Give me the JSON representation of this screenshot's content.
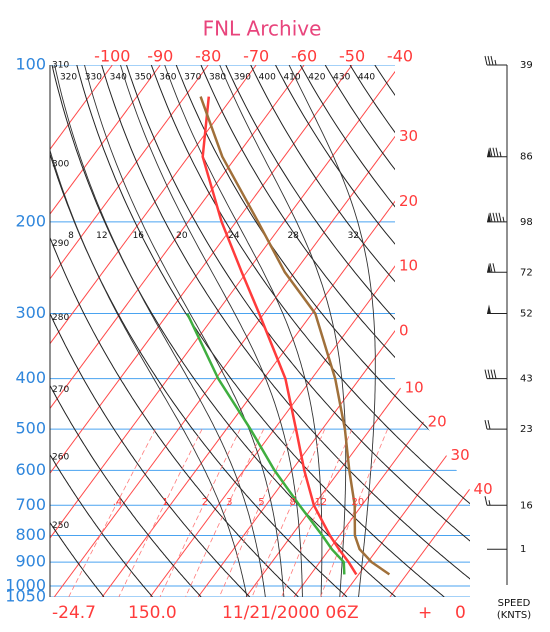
{
  "chart_data": {
    "type": "skew-t",
    "title": "FNL Archive",
    "ylim": [
      100,
      1050
    ],
    "y_scale": "log",
    "yticks": [
      100,
      200,
      300,
      400,
      500,
      600,
      700,
      800,
      900,
      1000,
      1050
    ],
    "xlim": [
      -113,
      -40
    ],
    "xticks": [
      -100,
      -90,
      -80,
      -70,
      -60,
      -50,
      -40
    ],
    "isotherm_ticks": [
      {
        "value": -30,
        "label": "30"
      },
      {
        "value": -20,
        "label": "20"
      },
      {
        "value": -10,
        "label": "10"
      },
      0,
      10,
      20,
      30,
      40
    ],
    "dry_adiabats": [
      250,
      260,
      270,
      280,
      290,
      300,
      310,
      320,
      330,
      340,
      350,
      360,
      370,
      380,
      390,
      400,
      410,
      420,
      430,
      440
    ],
    "moist_adiabats": [
      8,
      12,
      16,
      20,
      24,
      28,
      32
    ],
    "mixing_ratios": [
      {
        "value": 0.4,
        "label": ".4"
      },
      1,
      2,
      3,
      5,
      8,
      12,
      20
    ],
    "levels": [
      115,
      150,
      200,
      250,
      300,
      400,
      500,
      600,
      700,
      800,
      850,
      900,
      950
    ],
    "series": [
      {
        "color": "#ff3b3b",
        "values": [
          -75,
          -67,
          -53,
          -41,
          -31,
          -15.5,
          -5.5,
          2.6,
          10,
          18,
          22,
          26,
          29.5
        ]
      },
      {
        "color": "#3fae3f",
        "values": [
          null,
          null,
          null,
          null,
          -46,
          -29.5,
          -15,
          -3.6,
          7,
          16.4,
          20.5,
          25,
          27
        ]
      },
      {
        "color": "#a0703a",
        "values": [
          -76.7,
          -62.9,
          -45.4,
          -32,
          -19.3,
          -5.1,
          4.7,
          12,
          18.5,
          23.2,
          26.3,
          30.8,
          36.4
        ]
      }
    ],
    "wind": {
      "levels": [
        100,
        150,
        200,
        250,
        300,
        400,
        500,
        700,
        850
      ],
      "speeds": [
        39,
        86,
        98,
        72,
        52,
        43,
        23,
        16,
        1
      ],
      "unit_label": [
        "SPEED",
        "(KNTS)"
      ]
    },
    "footer": [
      "-24.7",
      "150.0",
      "11/21/2000 06Z",
      "+",
      "0"
    ]
  }
}
